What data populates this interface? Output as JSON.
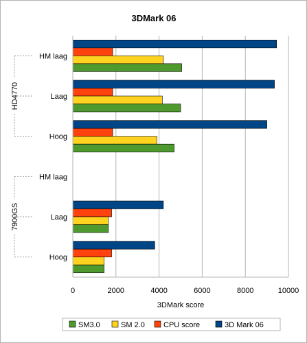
{
  "chart_data": {
    "type": "bar",
    "orientation": "horizontal",
    "title": "3DMark 06",
    "xlabel": "3DMark score",
    "ylabel": "",
    "xlim": [
      0,
      10000
    ],
    "xticks": [
      0,
      2000,
      4000,
      6000,
      8000,
      10000
    ],
    "grid": true,
    "legend_position": "bottom",
    "groups": [
      {
        "name": "HD4770",
        "categories": [
          "HM laag",
          "Laag",
          "Hoog"
        ]
      },
      {
        "name": "7900GS",
        "categories": [
          "HM laag",
          "Laag",
          "Hoog"
        ]
      }
    ],
    "categories": [
      "HM laag",
      "Laag",
      "Hoog",
      "HM laag",
      "Laag",
      "Hoog"
    ],
    "series": [
      {
        "name": "SM3.0",
        "color": "#4f9a2e",
        "values": [
          5050,
          5000,
          4700,
          null,
          1650,
          1450
        ]
      },
      {
        "name": "SM 2.0",
        "color": "#ffd320",
        "values": [
          4200,
          4150,
          3900,
          null,
          1650,
          1450
        ]
      },
      {
        "name": "CPU score",
        "color": "#ff420e",
        "values": [
          1850,
          1850,
          1850,
          null,
          1800,
          1800
        ]
      },
      {
        "name": "3D Mark 06",
        "color": "#004586",
        "values": [
          9450,
          9350,
          9000,
          null,
          4200,
          3800
        ]
      }
    ]
  }
}
